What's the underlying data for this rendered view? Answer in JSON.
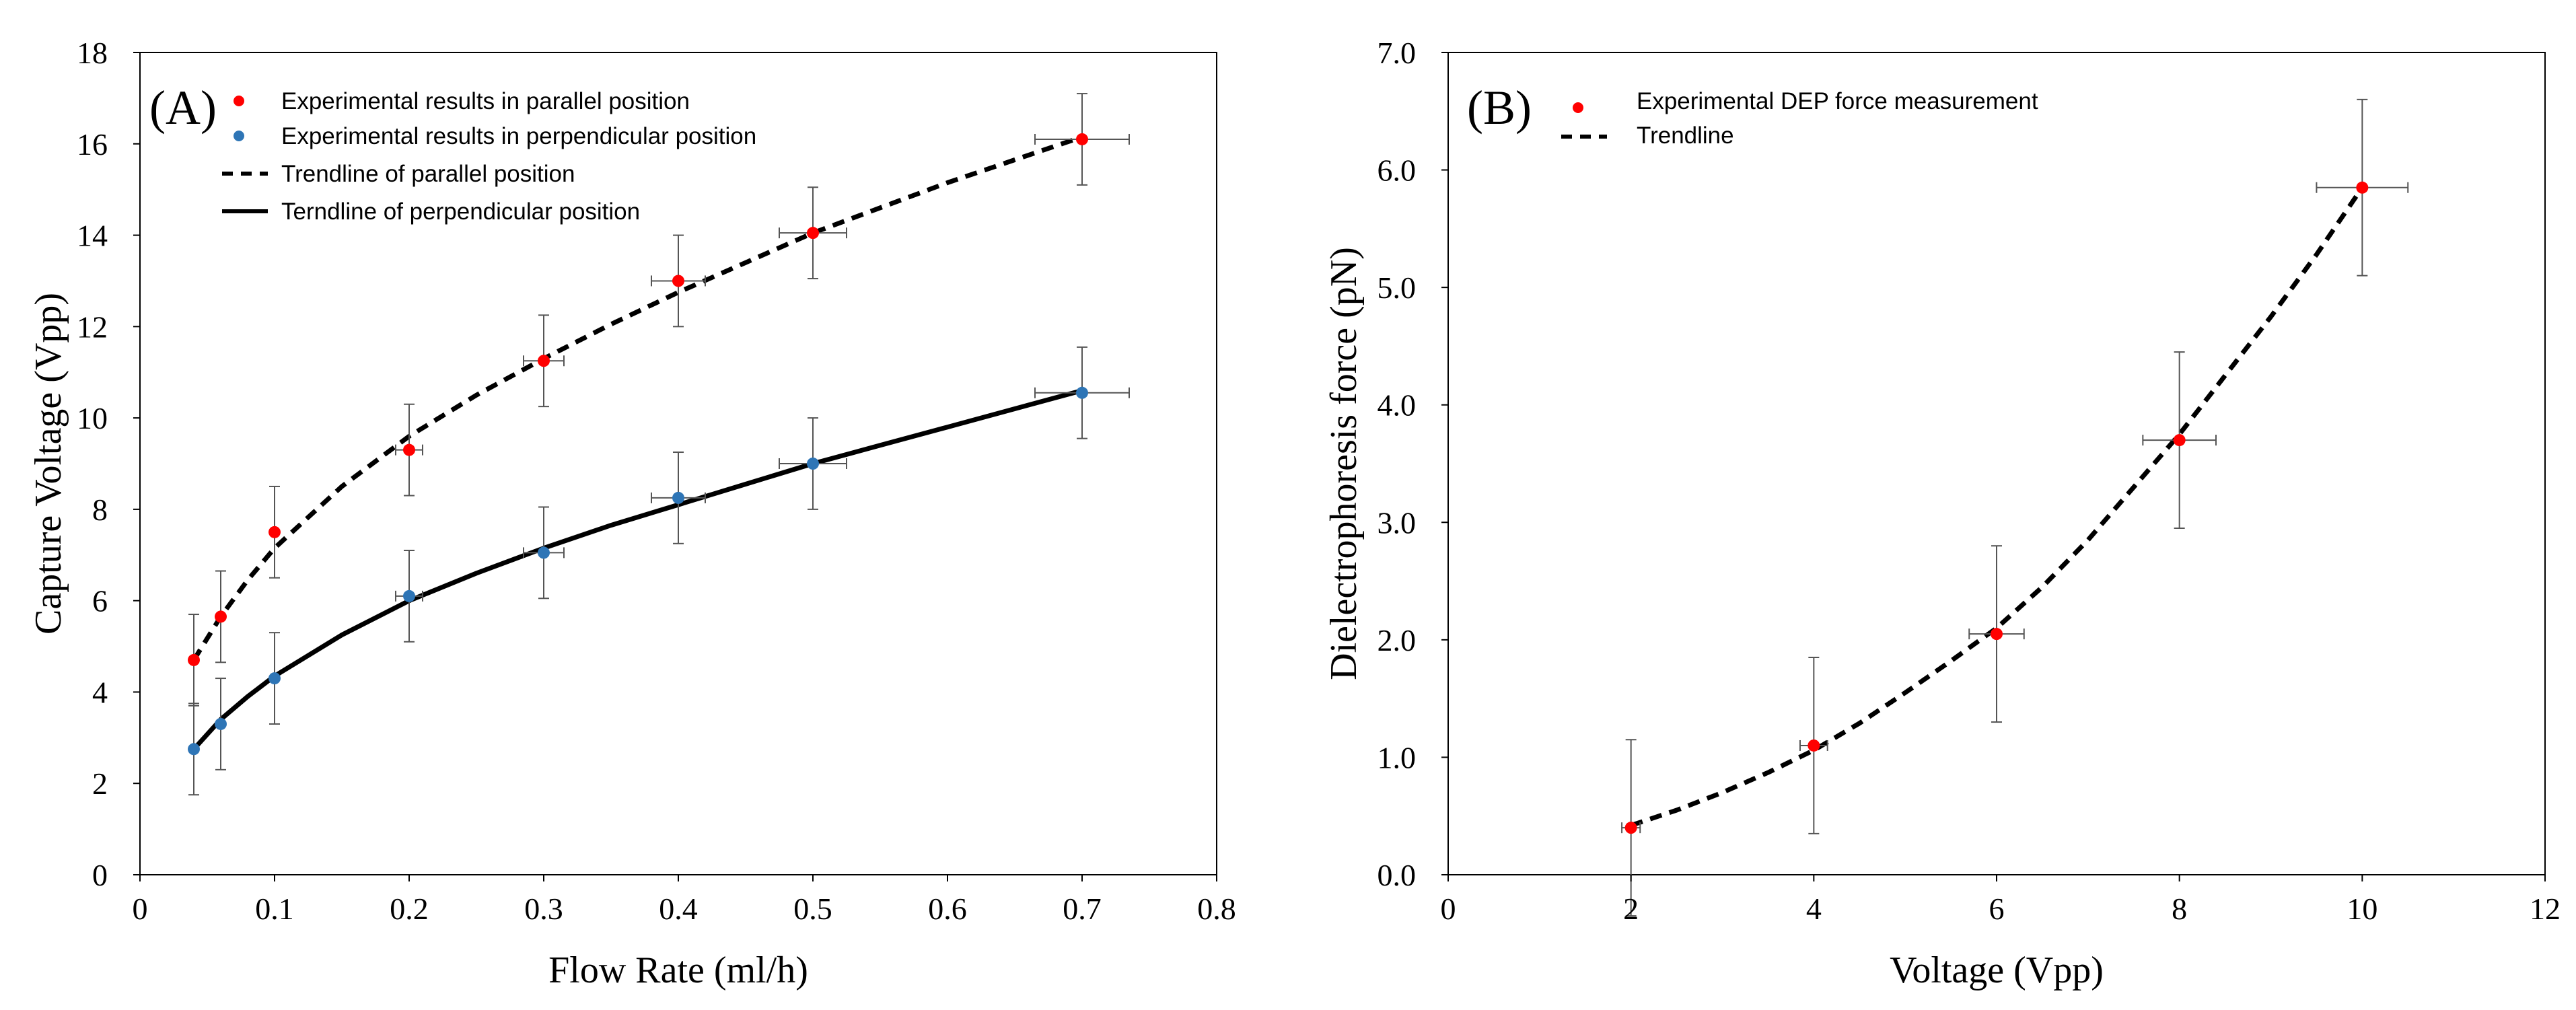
{
  "chart_data": [
    {
      "type": "scatter",
      "panel_label": "(A)",
      "xlabel": "Flow Rate (ml/h)",
      "ylabel": "Capture Voltage (Vpp)",
      "xlim": [
        0,
        0.8
      ],
      "ylim": [
        0,
        18
      ],
      "x_ticks": [
        0,
        0.1,
        0.2,
        0.3,
        0.4,
        0.5,
        0.6,
        0.7,
        0.8
      ],
      "x_tick_labels": [
        "0",
        "0.1",
        "0.2",
        "0.3",
        "0.4",
        "0.5",
        "0.6",
        "0.7",
        "0.8"
      ],
      "y_ticks": [
        0,
        2,
        4,
        6,
        8,
        10,
        12,
        14,
        16,
        18
      ],
      "y_tick_labels": [
        "0",
        "2",
        "4",
        "6",
        "8",
        "10",
        "12",
        "14",
        "16",
        "18"
      ],
      "grid": false,
      "legend_position": "top-left",
      "legend": [
        "Experimental results in parallel position",
        "Experimental results in perpendicular position",
        "Trendline of parallel position",
        "Terndline of perpendicular position"
      ],
      "series": [
        {
          "name": "Experimental results in parallel position",
          "kind": "points",
          "color": "#ff0000",
          "x": [
            0.04,
            0.06,
            0.1,
            0.2,
            0.3,
            0.4,
            0.5,
            0.7
          ],
          "y": [
            4.7,
            5.65,
            7.5,
            9.3,
            11.25,
            13.0,
            14.05,
            16.1
          ],
          "y_err": [
            1.0,
            1.0,
            1.0,
            1.0,
            1.0,
            1.0,
            1.0,
            1.0
          ],
          "x_err": [
            0,
            0,
            0,
            0.01,
            0.015,
            0.02,
            0.025,
            0.035
          ]
        },
        {
          "name": "Experimental results in perpendicular position",
          "kind": "points",
          "color": "#2e75b6",
          "x": [
            0.04,
            0.06,
            0.1,
            0.2,
            0.3,
            0.4,
            0.5,
            0.7
          ],
          "y": [
            2.75,
            3.3,
            4.3,
            6.1,
            7.05,
            8.25,
            9.0,
            10.55
          ],
          "y_err": [
            1.0,
            1.0,
            1.0,
            1.0,
            1.0,
            1.0,
            1.0,
            1.0
          ],
          "x_err": [
            0,
            0,
            0,
            0.01,
            0.015,
            0.02,
            0.025,
            0.035
          ]
        },
        {
          "name": "Trendline of parallel position",
          "kind": "trend",
          "style": "dashed",
          "color": "#000000",
          "x": [
            0.04,
            0.06,
            0.08,
            0.1,
            0.15,
            0.2,
            0.25,
            0.3,
            0.35,
            0.4,
            0.45,
            0.5,
            0.55,
            0.6,
            0.65,
            0.7
          ],
          "y": [
            4.7,
            5.65,
            6.45,
            7.15,
            8.5,
            9.6,
            10.5,
            11.3,
            12.05,
            12.75,
            13.4,
            14.05,
            14.6,
            15.15,
            15.65,
            16.15
          ]
        },
        {
          "name": "Terndline of perpendicular position",
          "kind": "trend",
          "style": "solid",
          "color": "#000000",
          "x": [
            0.04,
            0.06,
            0.08,
            0.1,
            0.15,
            0.2,
            0.25,
            0.3,
            0.35,
            0.4,
            0.45,
            0.5,
            0.55,
            0.6,
            0.65,
            0.7
          ],
          "y": [
            2.75,
            3.4,
            3.9,
            4.35,
            5.25,
            6.0,
            6.6,
            7.15,
            7.65,
            8.1,
            8.55,
            9.0,
            9.4,
            9.8,
            10.2,
            10.6
          ]
        }
      ]
    },
    {
      "type": "scatter",
      "panel_label": "(B)",
      "xlabel": "Voltage (Vpp)",
      "ylabel": "Dielectrophoresis force (pN)",
      "xlim": [
        0,
        12
      ],
      "ylim": [
        0,
        7
      ],
      "x_ticks": [
        0,
        2,
        4,
        6,
        8,
        10,
        12
      ],
      "x_tick_labels": [
        "0",
        "2",
        "4",
        "6",
        "8",
        "10",
        "12"
      ],
      "y_ticks": [
        0,
        1,
        2,
        3,
        4,
        5,
        6,
        7
      ],
      "y_tick_labels": [
        "0.0",
        "1.0",
        "2.0",
        "3.0",
        "4.0",
        "5.0",
        "6.0",
        "7.0"
      ],
      "grid": false,
      "legend_position": "top-left",
      "legend": [
        "Experimental DEP force measurement",
        "Trendline"
      ],
      "series": [
        {
          "name": "Experimental DEP force measurement",
          "kind": "points",
          "color": "#ff0000",
          "x": [
            2,
            4,
            6,
            8,
            10
          ],
          "y": [
            0.4,
            1.1,
            2.05,
            3.7,
            5.85
          ],
          "y_err": [
            0.75,
            0.75,
            0.75,
            0.75,
            0.75
          ],
          "x_err": [
            0.1,
            0.15,
            0.3,
            0.4,
            0.5
          ]
        },
        {
          "name": "Trendline",
          "kind": "trend",
          "style": "dashed",
          "color": "#000000",
          "x": [
            2,
            2.5,
            3,
            3.5,
            4,
            4.5,
            5,
            5.5,
            6,
            6.5,
            7,
            7.5,
            8,
            8.5,
            9,
            9.5,
            10
          ],
          "y": [
            0.42,
            0.55,
            0.7,
            0.87,
            1.06,
            1.29,
            1.55,
            1.82,
            2.1,
            2.45,
            2.85,
            3.3,
            3.75,
            4.25,
            4.75,
            5.28,
            5.85
          ]
        }
      ]
    }
  ]
}
